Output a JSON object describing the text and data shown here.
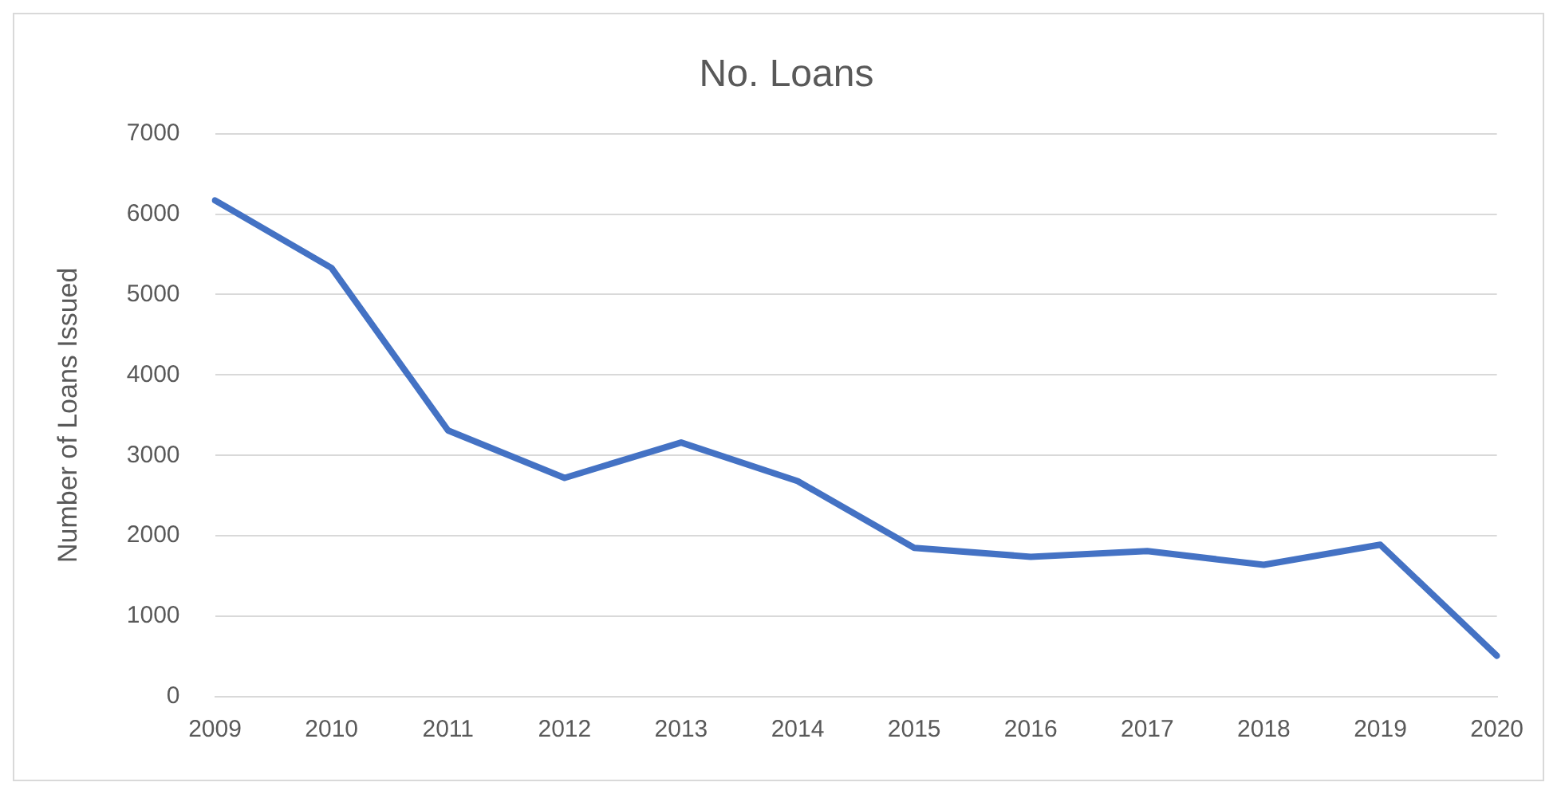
{
  "chart_data": {
    "type": "line",
    "title": "No. Loans",
    "ylabel": "Number of Loans Issued",
    "categories": [
      "2009",
      "2010",
      "2011",
      "2012",
      "2013",
      "2014",
      "2015",
      "2016",
      "2017",
      "2018",
      "2019",
      "2020"
    ],
    "series": [
      {
        "color": "#4472c4",
        "values": [
          6170,
          5330,
          3310,
          2720,
          3160,
          2680,
          1850,
          1740,
          1810,
          1640,
          1890,
          510
        ]
      }
    ],
    "ylim": [
      0,
      7000
    ],
    "yticks": [
      0,
      1000,
      2000,
      3000,
      4000,
      5000,
      6000,
      7000
    ],
    "grid": "y",
    "legend": false,
    "marker": "none",
    "line_style": "solid"
  }
}
